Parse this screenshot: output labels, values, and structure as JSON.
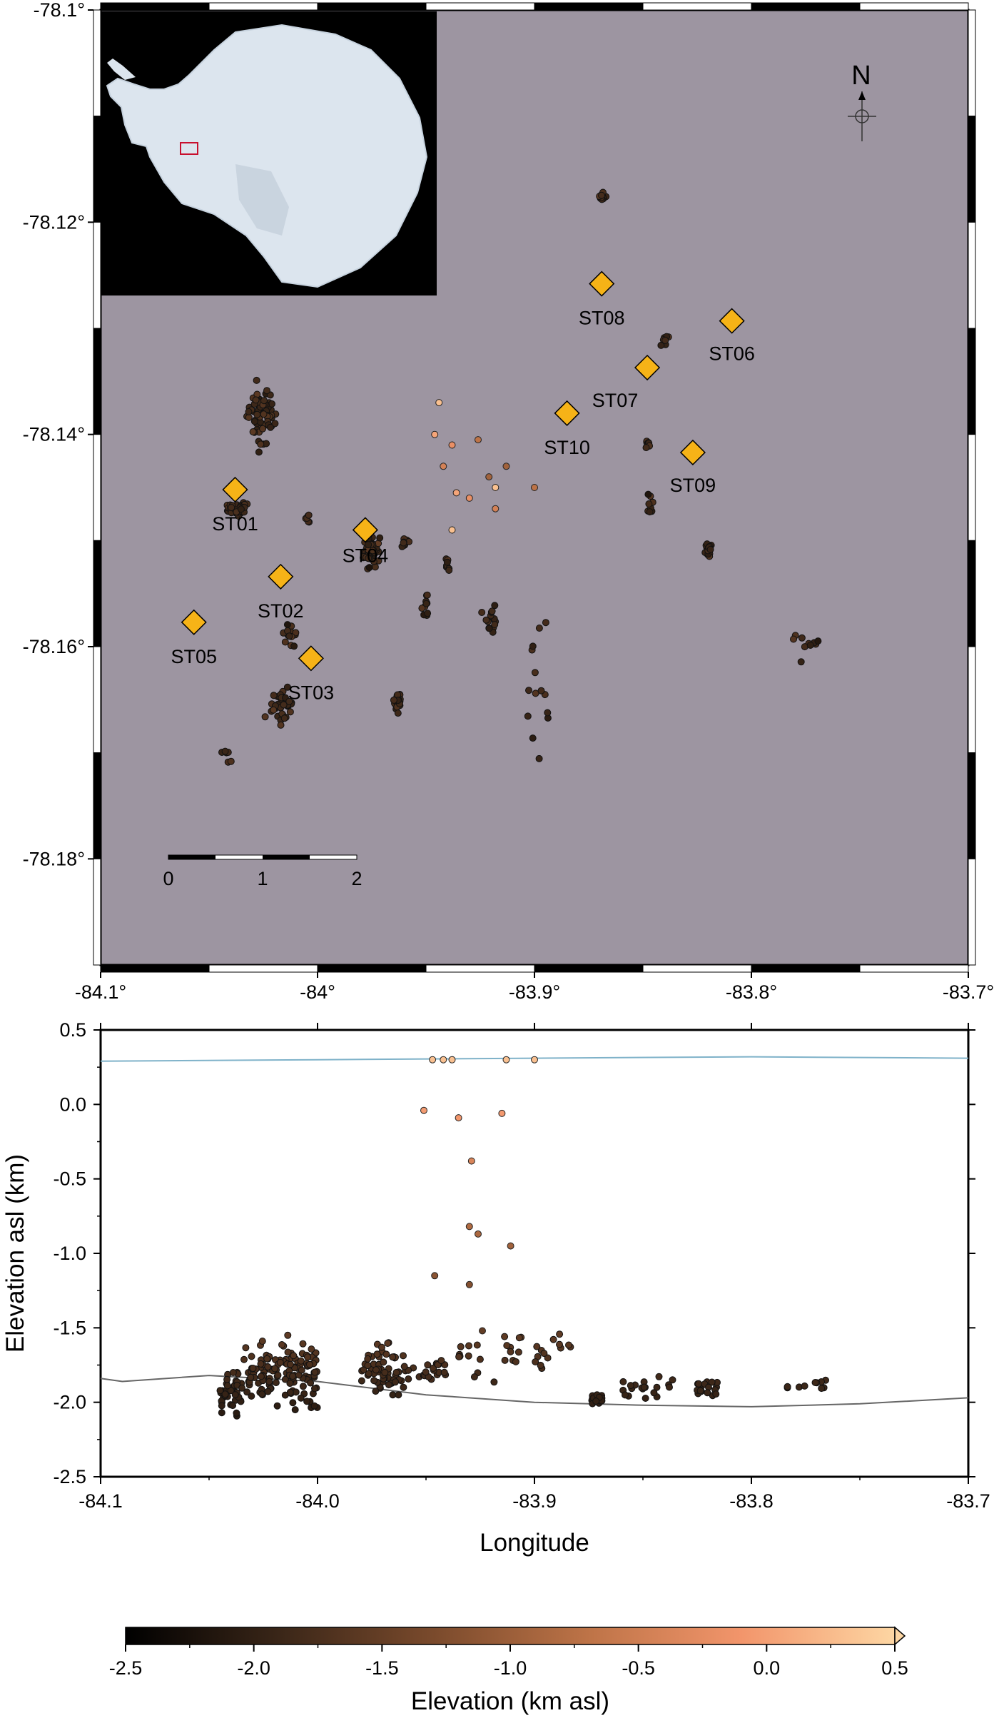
{
  "map": {
    "lat_ticks": [
      "-78.1°",
      "-78.12°",
      "-78.14°",
      "-78.16°",
      "-78.18°"
    ],
    "lon_ticks": [
      "-84.1°",
      "-84°",
      "-83.9°",
      "-83.8°",
      "-83.7°"
    ],
    "north_label": "N",
    "scale_bar_labels": [
      "0",
      "1",
      "2"
    ],
    "background_color": "#9d95a1",
    "station_color": "#f6b317",
    "stations": [
      {
        "name": "ST01",
        "lon": -84.038,
        "lat": -78.1452
      },
      {
        "name": "ST02",
        "lon": -84.017,
        "lat": -78.1534
      },
      {
        "name": "ST03",
        "lon": -84.003,
        "lat": -78.1611
      },
      {
        "name": "ST04",
        "lon": -83.978,
        "lat": -78.149
      },
      {
        "name": "ST05",
        "lon": -84.057,
        "lat": -78.1577
      },
      {
        "name": "ST06",
        "lon": -83.809,
        "lat": -78.1293
      },
      {
        "name": "ST07",
        "lon": -83.848,
        "lat": -78.1337
      },
      {
        "name": "ST08",
        "lon": -83.869,
        "lat": -78.1258
      },
      {
        "name": "ST09",
        "lon": -83.827,
        "lat": -78.1417
      },
      {
        "name": "ST10",
        "lon": -83.885,
        "lat": -78.138
      }
    ],
    "inset": {
      "alt": "Antarctica overview inset with study area box"
    }
  },
  "chart_data": {
    "type": "scatter",
    "xlabel": "Longitude",
    "ylabel": "Elevation asl (km)",
    "xlim": [
      -84.1,
      -83.7
    ],
    "ylim": [
      -2.5,
      0.5
    ],
    "xticks": [
      "-84.1",
      "-84.0",
      "-83.9",
      "-83.8",
      "-83.7"
    ],
    "yticks": [
      "0.5",
      "0.0",
      "-0.5",
      "-1.0",
      "-1.5",
      "-2.0",
      "-2.5"
    ],
    "surface_line": {
      "color": "#7fb2c9",
      "x": [
        -84.1,
        -84.0,
        -83.9,
        -83.8,
        -83.7
      ],
      "y": [
        0.29,
        0.3,
        0.31,
        0.32,
        0.31
      ]
    },
    "bed_line": {
      "color": "#666666",
      "x": [
        -84.1,
        -84.09,
        -84.05,
        -84.0,
        -83.95,
        -83.9,
        -83.85,
        -83.8,
        -83.75,
        -83.7
      ],
      "y": [
        -1.84,
        -1.86,
        -1.82,
        -1.86,
        -1.95,
        -2.0,
        -2.02,
        -2.03,
        -2.01,
        -1.97
      ]
    },
    "shallow_events": [
      {
        "lon": -83.947,
        "elev": 0.3
      },
      {
        "lon": -83.942,
        "elev": 0.3
      },
      {
        "lon": -83.938,
        "elev": 0.3
      },
      {
        "lon": -83.913,
        "elev": 0.3
      },
      {
        "lon": -83.9,
        "elev": 0.3
      },
      {
        "lon": -83.951,
        "elev": -0.04
      },
      {
        "lon": -83.935,
        "elev": -0.09
      },
      {
        "lon": -83.915,
        "elev": -0.06
      },
      {
        "lon": -83.929,
        "elev": -0.38
      },
      {
        "lon": -83.93,
        "elev": -0.82
      },
      {
        "lon": -83.926,
        "elev": -0.87
      },
      {
        "lon": -83.911,
        "elev": -0.95
      },
      {
        "lon": -83.946,
        "elev": -1.15
      },
      {
        "lon": -83.93,
        "elev": -1.21
      },
      {
        "lon": -83.924,
        "elev": -1.52
      }
    ],
    "clusters": [
      {
        "lon": [
          -84.045,
          -84.035
        ],
        "elev": [
          -2.1,
          -1.8
        ],
        "n": 40
      },
      {
        "lon": [
          -84.035,
          -84.0
        ],
        "elev": [
          -2.05,
          -1.55
        ],
        "n": 140
      },
      {
        "lon": [
          -83.98,
          -83.96
        ],
        "elev": [
          -1.95,
          -1.6
        ],
        "n": 60
      },
      {
        "lon": [
          -83.96,
          -83.94
        ],
        "elev": [
          -1.9,
          -1.7
        ],
        "n": 25
      },
      {
        "lon": [
          -83.935,
          -83.925
        ],
        "elev": [
          -1.9,
          -1.55
        ],
        "n": 10
      },
      {
        "lon": [
          -83.92,
          -83.88
        ],
        "elev": [
          -1.9,
          -1.5
        ],
        "n": 25
      },
      {
        "lon": [
          -83.875,
          -83.865
        ],
        "elev": [
          -2.02,
          -1.95
        ],
        "n": 15
      },
      {
        "lon": [
          -83.86,
          -83.835
        ],
        "elev": [
          -2.0,
          -1.8
        ],
        "n": 20
      },
      {
        "lon": [
          -83.825,
          -83.815
        ],
        "elev": [
          -1.98,
          -1.83
        ],
        "n": 18
      },
      {
        "lon": [
          -83.785,
          -83.765
        ],
        "elev": [
          -1.95,
          -1.83
        ],
        "n": 10
      }
    ],
    "map_clusters": [
      {
        "lon": -84.026,
        "lat": -78.1382,
        "sx": 0.0055,
        "sy": 0.0022,
        "n": 70
      },
      {
        "lon": -84.037,
        "lat": -78.147,
        "sx": 0.005,
        "sy": 0.0005,
        "n": 35
      },
      {
        "lon": -83.975,
        "lat": -78.151,
        "sx": 0.003,
        "sy": 0.0012,
        "n": 60
      },
      {
        "lon": -84.016,
        "lat": -78.1655,
        "sx": 0.004,
        "sy": 0.0012,
        "n": 40
      },
      {
        "lon": -84.013,
        "lat": -78.159,
        "sx": 0.0025,
        "sy": 0.0008,
        "n": 15
      },
      {
        "lon": -83.963,
        "lat": -78.165,
        "sx": 0.0015,
        "sy": 0.001,
        "n": 20
      },
      {
        "lon": -83.869,
        "lat": -78.1175,
        "sx": 0.001,
        "sy": 0.0004,
        "n": 15
      },
      {
        "lon": -83.82,
        "lat": -78.151,
        "sx": 0.0015,
        "sy": 0.0006,
        "n": 20
      },
      {
        "lon": -83.847,
        "lat": -78.1465,
        "sx": 0.0012,
        "sy": 0.0008,
        "n": 8
      },
      {
        "lon": -83.848,
        "lat": -78.141,
        "sx": 0.0012,
        "sy": 0.0004,
        "n": 8
      },
      {
        "lon": -83.84,
        "lat": -78.131,
        "sx": 0.0012,
        "sy": 0.0004,
        "n": 8
      },
      {
        "lon": -83.92,
        "lat": -78.1575,
        "sx": 0.0025,
        "sy": 0.0012,
        "n": 15
      },
      {
        "lon": -83.94,
        "lat": -78.152,
        "sx": 0.001,
        "sy": 0.0006,
        "n": 8
      },
      {
        "lon": -83.96,
        "lat": -78.15,
        "sx": 0.0015,
        "sy": 0.0005,
        "n": 8
      },
      {
        "lon": -83.95,
        "lat": -78.156,
        "sx": 0.0015,
        "sy": 0.001,
        "n": 10
      },
      {
        "lon": -83.775,
        "lat": -78.1595,
        "sx": 0.006,
        "sy": 0.0008,
        "n": 10
      },
      {
        "lon": -84.042,
        "lat": -78.17,
        "sx": 0.0015,
        "sy": 0.0008,
        "n": 6
      },
      {
        "lon": -84.005,
        "lat": -78.148,
        "sx": 0.0015,
        "sy": 0.0005,
        "n": 6
      },
      {
        "lon": -83.9,
        "lat": -78.1625,
        "sx": 0.006,
        "sy": 0.006,
        "n": 14
      }
    ],
    "map_shallow_events": [
      {
        "lon": -83.944,
        "lat": -78.137
      },
      {
        "lon": -83.946,
        "lat": -78.14
      },
      {
        "lon": -83.938,
        "lat": -78.141
      },
      {
        "lon": -83.942,
        "lat": -78.143
      },
      {
        "lon": -83.926,
        "lat": -78.1405
      },
      {
        "lon": -83.921,
        "lat": -78.144
      },
      {
        "lon": -83.918,
        "lat": -78.145
      },
      {
        "lon": -83.936,
        "lat": -78.1455
      },
      {
        "lon": -83.93,
        "lat": -78.146
      },
      {
        "lon": -83.918,
        "lat": -78.147
      },
      {
        "lon": -83.9,
        "lat": -78.145
      },
      {
        "lon": -83.913,
        "lat": -78.143
      },
      {
        "lon": -83.938,
        "lat": -78.149
      }
    ]
  },
  "colorbar": {
    "label": "Elevation (km asl)",
    "ticks": [
      "-2.5",
      "-2.0",
      "-1.5",
      "-1.0",
      "-0.5",
      "0.0",
      "0.5"
    ],
    "range": [
      -2.5,
      0.5
    ],
    "colors": [
      "#000000",
      "#3a2618",
      "#7a4a2c",
      "#bd7347",
      "#f2956b",
      "#fdd6a3"
    ]
  }
}
